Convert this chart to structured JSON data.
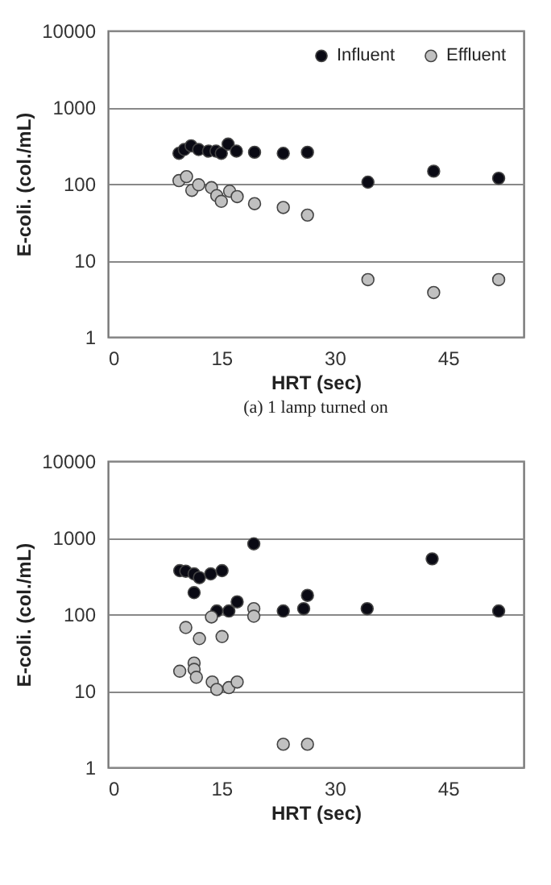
{
  "chart_data": [
    {
      "type": "scatter",
      "xlabel": "HRT (sec)",
      "ylabel": "E-coli. (col./mL)",
      "annotations": [
        "(a) 1 lamp turned on"
      ],
      "xlim": [
        0,
        55
      ],
      "xticks": [
        0,
        15,
        30,
        45
      ],
      "ylim": [
        1,
        10000
      ],
      "yticks": [
        1,
        10,
        100,
        1000,
        10000
      ],
      "log": "y",
      "grid": "y",
      "legend": "top right",
      "marker": "circle",
      "series": [
        {
          "name": "Influent",
          "color": "#0a0a14",
          "x": [
            9.4,
            10.1,
            11,
            12,
            13.3,
            14.3,
            15,
            15.9,
            17,
            19.4,
            23.2,
            26.4,
            34.4,
            43.1,
            51.7
          ],
          "values": [
            250,
            280,
            313,
            280,
            267,
            267,
            250,
            330,
            267,
            258,
            250,
            258,
            105,
            146,
            118
          ]
        },
        {
          "name": "Effluent",
          "color": "#c0c0c0",
          "x": [
            9.4,
            10.4,
            11.1,
            12,
            13.7,
            14.4,
            15,
            16.1,
            17.1,
            19.4,
            23.2,
            26.4,
            34.4,
            43.1,
            51.7
          ],
          "values": [
            110,
            124,
            82,
            97,
            89,
            70,
            59,
            80,
            68,
            55,
            49,
            39,
            5.6,
            3.8,
            5.6
          ]
        }
      ]
    },
    {
      "type": "scatter",
      "xlabel": "HRT (sec)",
      "ylabel": "E-coli. (col./mL)",
      "xlim": [
        0,
        55
      ],
      "xticks": [
        0,
        15,
        30,
        45
      ],
      "ylim": [
        1,
        10000
      ],
      "yticks": [
        1,
        10,
        100,
        1000,
        10000
      ],
      "log": "y",
      "grid": "y",
      "legend": "top right",
      "marker": "circle",
      "series": [
        {
          "name": "Influent",
          "color": "#0a0a14",
          "x": [
            9.5,
            10.3,
            11.4,
            12.1,
            13.6,
            15.1,
            11.4,
            14.4,
            16,
            17.1,
            19.3,
            23.2,
            25.9,
            26.4,
            34.3,
            42.9,
            51.7
          ],
          "values": [
            370,
            364,
            336,
            300,
            336,
            370,
            191,
            110,
            110,
            145,
            830,
            110,
            118,
            176,
            118,
            528,
            110
          ]
        },
        {
          "name": "Effluent",
          "color": "#c0c0c0",
          "x": [
            10.3,
            12.1,
            15.1,
            13.7,
            19.3,
            19.3,
            9.5,
            11.4,
            11.4,
            11.7,
            13.8,
            14.4,
            16,
            17.1,
            23.2,
            26.4
          ],
          "values": [
            67,
            48,
            51,
            92,
            118,
            94,
            18,
            23,
            19,
            15,
            13,
            10.4,
            11,
            13,
            2,
            2
          ]
        }
      ]
    }
  ]
}
